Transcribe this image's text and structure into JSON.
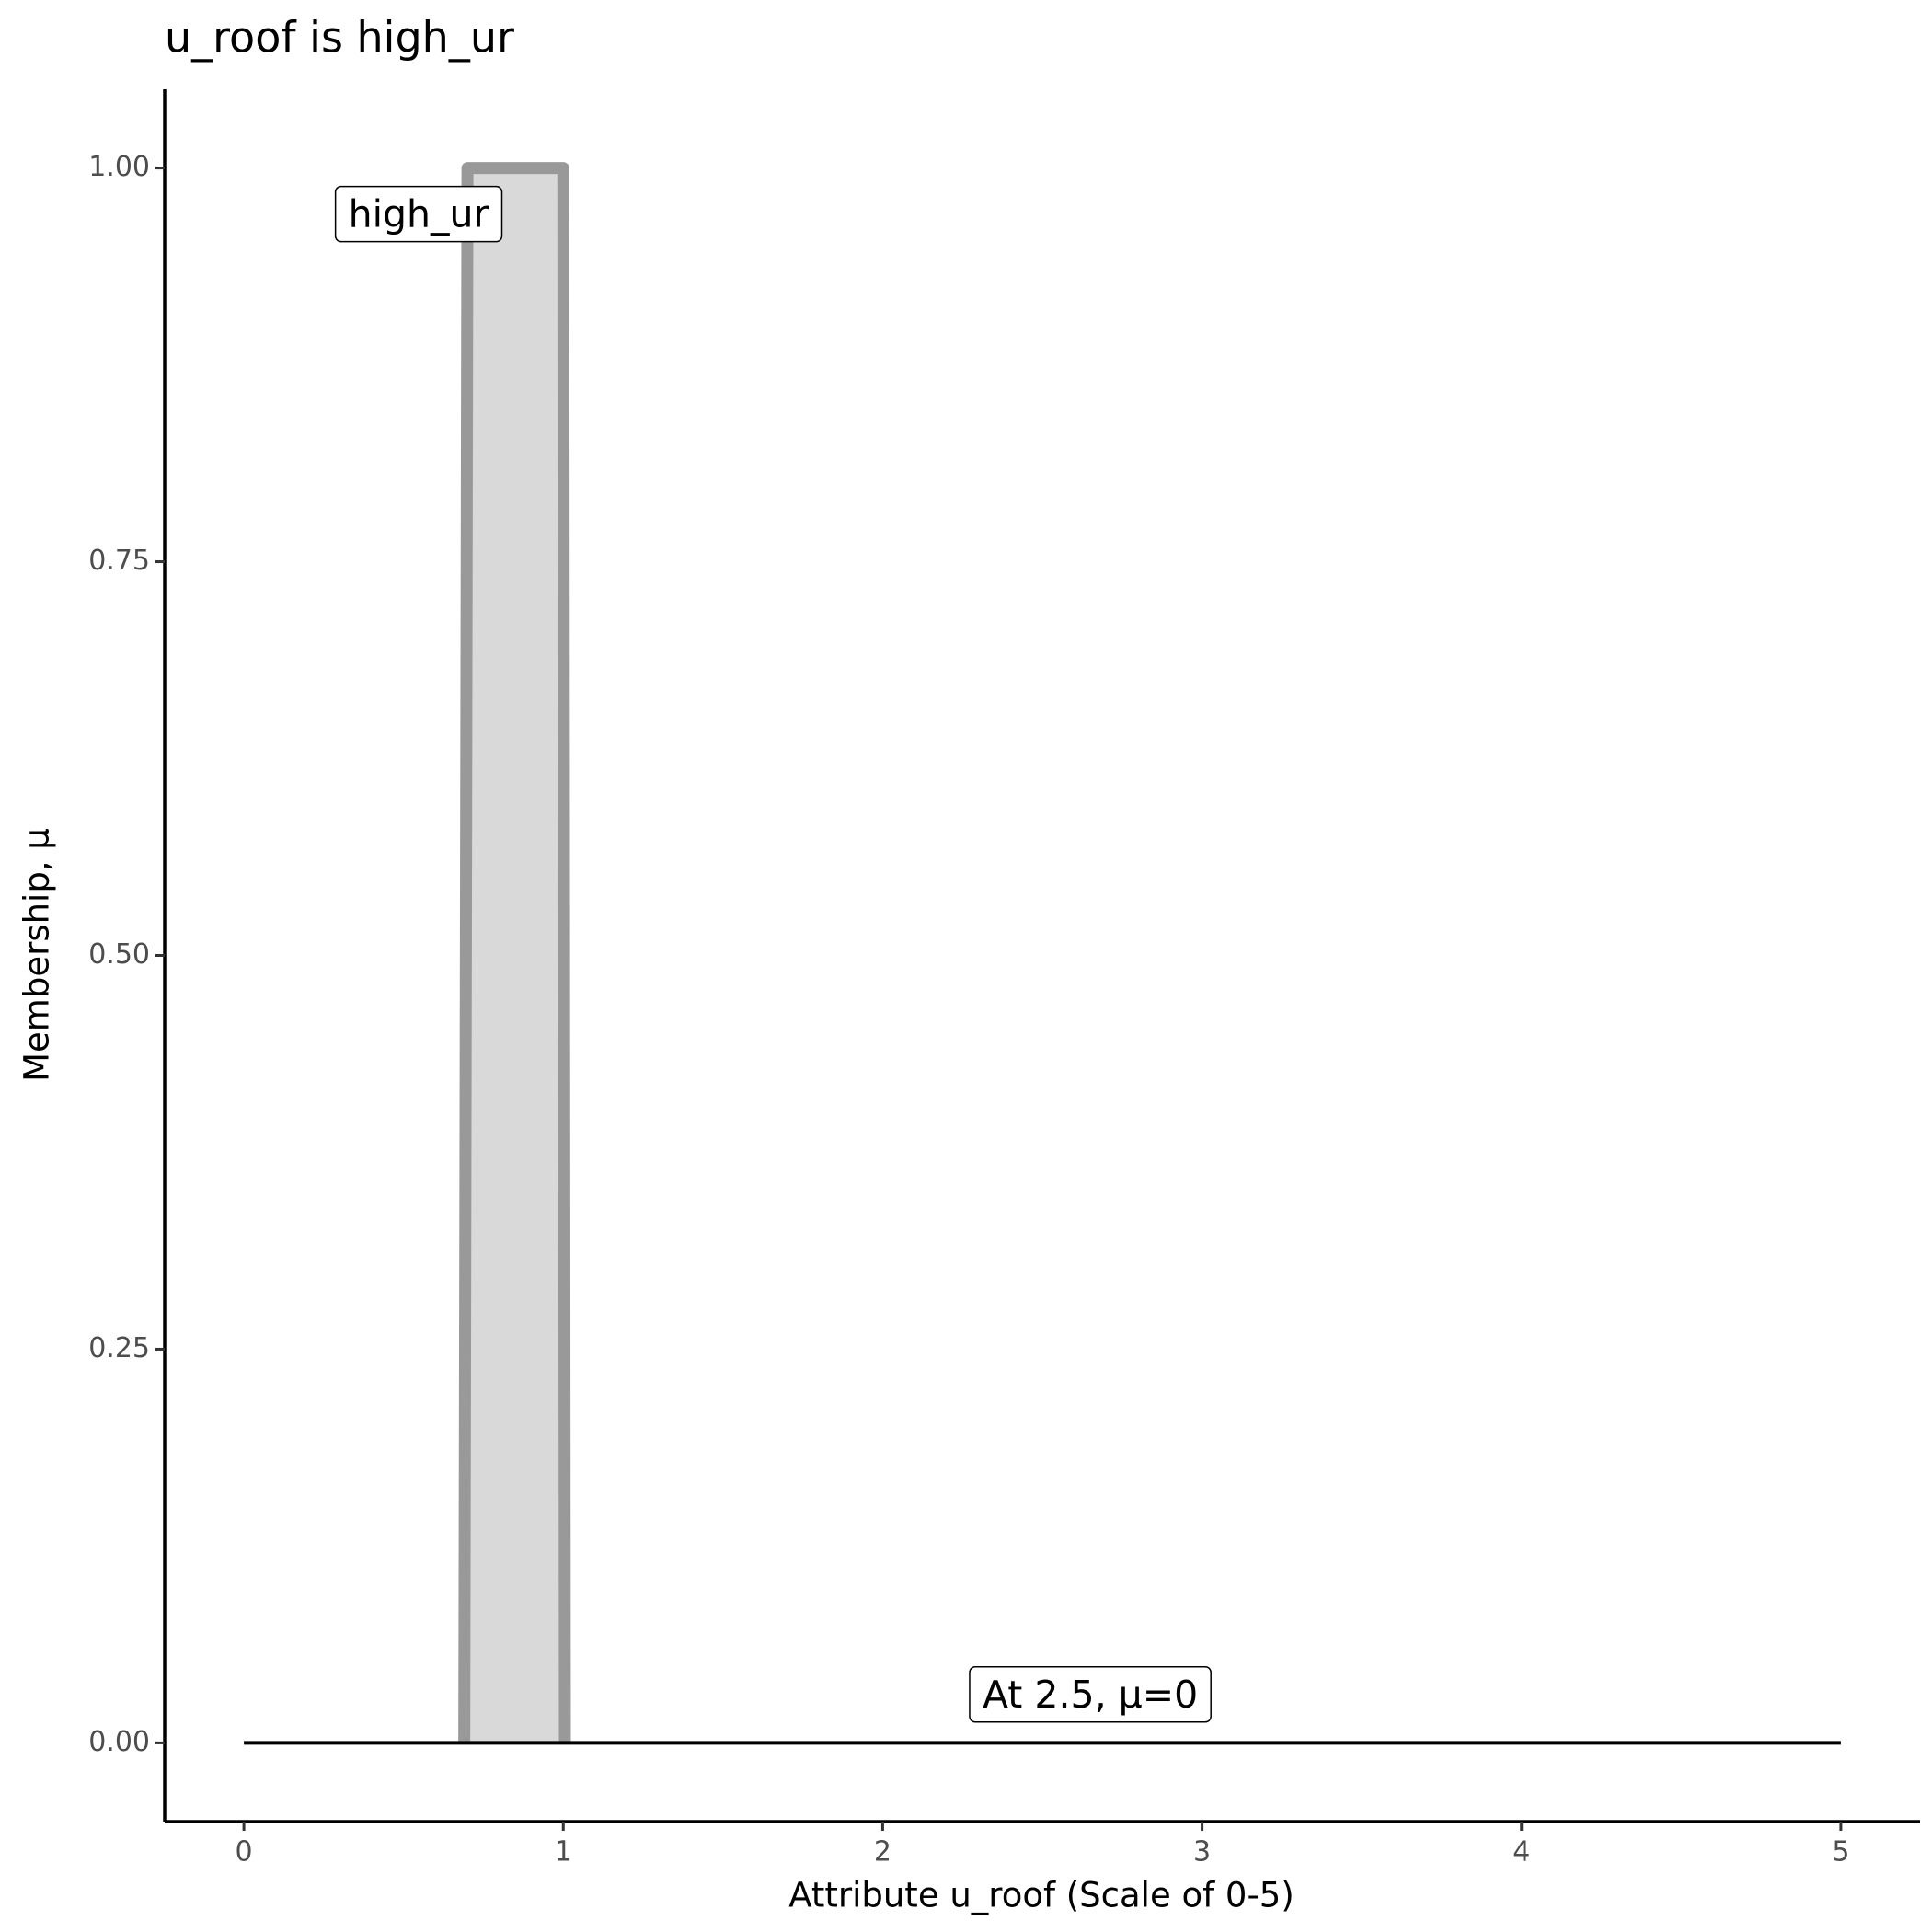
{
  "chart_data": {
    "type": "area",
    "title": "u_roof is high_ur",
    "x_label": "Attribute u_roof (Scale of 0-5)",
    "y_label": "Membership, μ",
    "series": [
      {
        "x": [
          0.69,
          0.7,
          1,
          1.005
        ],
        "values": [
          0,
          1,
          1,
          0
        ],
        "color": "#999999",
        "fill": "#d9d9d9"
      },
      {
        "x": [
          0,
          5
        ],
        "values": [
          0,
          0
        ],
        "color": "#000000"
      }
    ],
    "annotations": [
      {
        "text": "high_ur",
        "x": 0.547,
        "y": 0.969
      },
      {
        "text": "At 2.5, μ=0",
        "x": 2.65,
        "y": 0.029
      }
    ],
    "xlim": [
      -0.248,
      5.248
    ],
    "ylim": [
      -0.05,
      1.05
    ],
    "xticks": [
      0,
      1,
      2,
      3,
      4,
      5
    ],
    "yticks": [
      {
        "value": 0,
        "label": "0.00"
      },
      {
        "value": 0.25,
        "label": "0.25"
      },
      {
        "value": 0.5,
        "label": "0.50"
      },
      {
        "value": 0.75,
        "label": "0.75"
      },
      {
        "value": 1,
        "label": "1.00"
      }
    ],
    "grid": false
  }
}
